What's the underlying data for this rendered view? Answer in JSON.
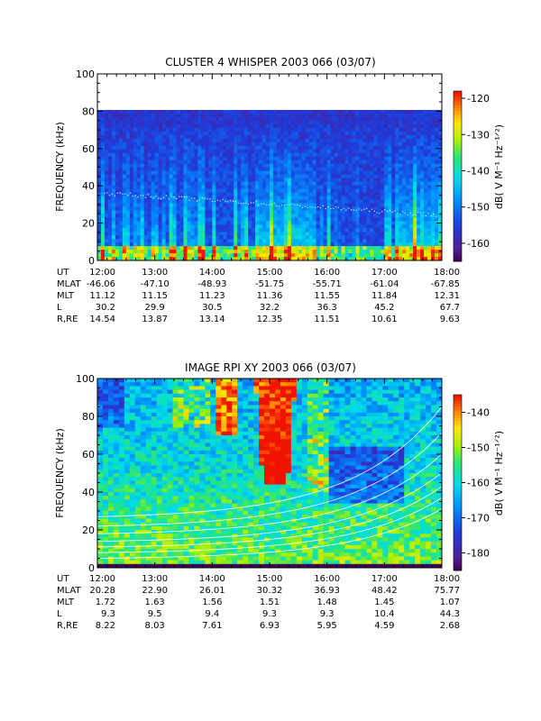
{
  "panels": [
    {
      "id": "cluster",
      "title": "CLUSTER 4 WHISPER 2003 066 (03/07)",
      "ylabel": "FREQUENCY (kHz)",
      "cbar_label": "dB( V M⁻¹ Hz⁻¹ᐟ²)",
      "ytick_labels": [
        "0",
        "20",
        "40",
        "60",
        "80",
        "100"
      ],
      "cbar_tick_labels": [
        "-120",
        "-130",
        "-140",
        "-150",
        "-160"
      ],
      "orbit_labels": [
        "UT",
        "MLAT",
        "MLT",
        "L",
        "R,RE"
      ],
      "orbit_rows": [
        [
          "12:00",
          "13:00",
          "14:00",
          "15:00",
          "16:00",
          "17:00",
          "18:00"
        ],
        [
          "-46.06",
          "-47.10",
          "-48.93",
          "-51.75",
          "-55.71",
          "-61.04",
          "-67.85"
        ],
        [
          "11.12",
          "11.15",
          "11.23",
          "11.36",
          "11.55",
          "11.84",
          "12.31"
        ],
        [
          "30.2",
          "29.9",
          "30.5",
          "32.2",
          "36.3",
          "45.2",
          "67.7"
        ],
        [
          "14.54",
          "13.87",
          "13.14",
          "12.35",
          "11.51",
          "10.61",
          "9.63"
        ]
      ]
    },
    {
      "id": "image",
      "title": "IMAGE RPI XY 2003 066 (03/07)",
      "ylabel": "FREQUENCY (kHz)",
      "cbar_label": "dB( V M⁻¹ Hz⁻¹ᐟ²)",
      "ytick_labels": [
        "0",
        "20",
        "40",
        "60",
        "80",
        "100"
      ],
      "cbar_tick_labels": [
        "-140",
        "-150",
        "-160",
        "-170",
        "-180"
      ],
      "orbit_labels": [
        "UT",
        "MLAT",
        "MLT",
        "L",
        "R,RE"
      ],
      "orbit_rows": [
        [
          "12:00",
          "13:00",
          "14:00",
          "15:00",
          "16:00",
          "17:00",
          "18:00"
        ],
        [
          "20.28",
          "22.90",
          "26.01",
          "30.32",
          "36.93",
          "48.42",
          "75.77"
        ],
        [
          "1.72",
          "1.63",
          "1.56",
          "1.51",
          "1.48",
          "1.45",
          "1.07"
        ],
        [
          "9.3",
          "9.5",
          "9.4",
          "9.3",
          "9.3",
          "10.4",
          "44.3"
        ],
        [
          "8.22",
          "8.03",
          "7.61",
          "6.93",
          "5.95",
          "4.59",
          "2.68"
        ]
      ]
    }
  ],
  "chart_data": [
    {
      "type": "heatmap",
      "title": "CLUSTER 4 WHISPER 2003 066 (03/07)",
      "ylabel": "FREQUENCY (kHz)",
      "x_label": "UT",
      "x_range": [
        "12:00",
        "18:00"
      ],
      "ylim": [
        0,
        100
      ],
      "data_ylim": [
        0,
        80
      ],
      "colorbar_range_dB": [
        -165,
        -118
      ],
      "colorbar_ticks": [
        -120,
        -130,
        -140,
        -150,
        -160
      ],
      "colormap": "rainbow",
      "colors": {
        "low": "#5a1fa0",
        "mid": "#00c8ff",
        "high": "#ff2000"
      }
    },
    {
      "type": "heatmap",
      "title": "IMAGE RPI XY 2003 066 (03/07)",
      "ylabel": "FREQUENCY (kHz)",
      "x_label": "UT",
      "x_range": [
        "12:00",
        "18:00"
      ],
      "ylim": [
        0,
        100
      ],
      "colorbar_range_dB": [
        -185,
        -135
      ],
      "colorbar_ticks": [
        -140,
        -150,
        -160,
        -170,
        -180
      ],
      "colormap": "rainbow",
      "colors": {
        "low": "#5a1fa0",
        "mid": "#00c8ff",
        "high": "#ff2000"
      }
    }
  ]
}
